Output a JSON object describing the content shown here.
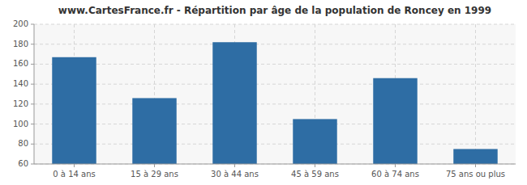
{
  "chart_data": {
    "type": "bar",
    "title": "www.CartesFrance.fr - Répartition par âge de la population de Roncey en 1999",
    "categories": [
      "0 à 14 ans",
      "15 à 29 ans",
      "30 à 44 ans",
      "45 à 59 ans",
      "60 à 74 ans",
      "75 ans ou plus"
    ],
    "values": [
      167,
      126,
      182,
      105,
      146,
      75
    ],
    "color": "#2e6da4",
    "ylim": [
      60,
      200
    ],
    "yticks": [
      60,
      80,
      100,
      120,
      140,
      160,
      180,
      200
    ],
    "grid": true
  }
}
